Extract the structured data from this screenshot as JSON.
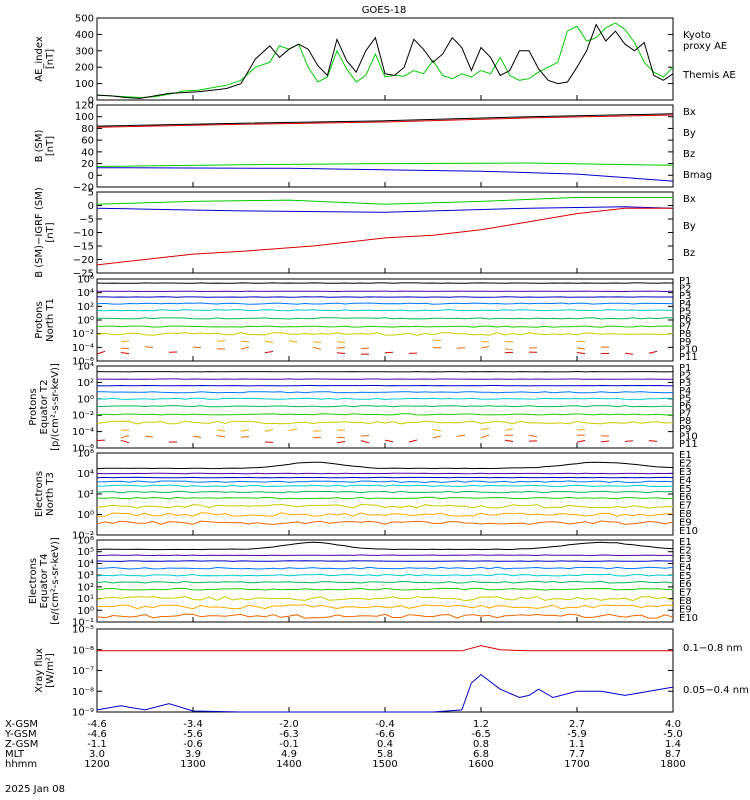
{
  "title": "GOES-18",
  "date": "2025 Jan 08",
  "colors": {
    "red": "#dd0000",
    "green": "#00cc00",
    "blue": "#0000cc",
    "black": "#000000",
    "P": [
      "#000000",
      "#5500aa",
      "#0000cc",
      "#0077ff",
      "#00cccc",
      "#00bb55",
      "#22cc00",
      "#cccc00",
      "#ffaa00",
      "#ee6600",
      "#dd0000"
    ]
  },
  "chart_data": [
    {
      "id": "ae",
      "type": "line",
      "ylabel": "AE_index\n[nT]",
      "ylim": [
        0,
        500
      ],
      "yticks": [
        "0",
        "100",
        "200",
        "300",
        "400",
        "500"
      ],
      "series": [
        {
          "name": "Kyoto\nproxy AE",
          "color": "#00cc00",
          "points": [
            [
              0,
              30
            ],
            [
              3,
              25
            ],
            [
              6,
              20
            ],
            [
              9,
              15
            ],
            [
              12,
              20
            ],
            [
              15,
              35
            ],
            [
              18,
              55
            ],
            [
              21,
              60
            ],
            [
              24,
              75
            ],
            [
              27,
              90
            ],
            [
              30,
              120
            ],
            [
              33,
              200
            ],
            [
              36,
              230
            ],
            [
              38,
              330
            ],
            [
              40,
              310
            ],
            [
              42,
              340
            ],
            [
              44,
              200
            ],
            [
              46,
              110
            ],
            [
              48,
              140
            ],
            [
              50,
              300
            ],
            [
              52,
              190
            ],
            [
              54,
              110
            ],
            [
              56,
              150
            ],
            [
              58,
              280
            ],
            [
              60,
              140
            ],
            [
              62,
              150
            ],
            [
              64,
              145
            ],
            [
              66,
              180
            ],
            [
              68,
              160
            ],
            [
              70,
              240
            ],
            [
              72,
              150
            ],
            [
              74,
              130
            ],
            [
              76,
              160
            ],
            [
              78,
              140
            ],
            [
              80,
              180
            ],
            [
              82,
              160
            ],
            [
              84,
              260
            ],
            [
              86,
              150
            ],
            [
              88,
              120
            ],
            [
              90,
              130
            ],
            [
              92,
              170
            ],
            [
              94,
              200
            ],
            [
              96,
              230
            ],
            [
              98,
              420
            ],
            [
              100,
              450
            ],
            [
              102,
              360
            ],
            [
              104,
              380
            ],
            [
              106,
              440
            ],
            [
              108,
              470
            ],
            [
              110,
              430
            ],
            [
              112,
              350
            ],
            [
              114,
              230
            ],
            [
              116,
              170
            ],
            [
              118,
              140
            ],
            [
              120,
              200
            ]
          ]
        },
        {
          "name": "Themis AE",
          "color": "#000000",
          "points": [
            [
              0,
              30
            ],
            [
              3,
              25
            ],
            [
              6,
              15
            ],
            [
              9,
              10
            ],
            [
              12,
              25
            ],
            [
              15,
              40
            ],
            [
              18,
              45
            ],
            [
              21,
              50
            ],
            [
              24,
              60
            ],
            [
              27,
              70
            ],
            [
              30,
              100
            ],
            [
              33,
              250
            ],
            [
              36,
              330
            ],
            [
              38,
              260
            ],
            [
              40,
              310
            ],
            [
              42,
              340
            ],
            [
              44,
              310
            ],
            [
              46,
              210
            ],
            [
              48,
              150
            ],
            [
              50,
              370
            ],
            [
              52,
              240
            ],
            [
              54,
              170
            ],
            [
              56,
              300
            ],
            [
              58,
              380
            ],
            [
              60,
              160
            ],
            [
              62,
              150
            ],
            [
              64,
              200
            ],
            [
              66,
              370
            ],
            [
              68,
              310
            ],
            [
              70,
              230
            ],
            [
              72,
              280
            ],
            [
              74,
              380
            ],
            [
              76,
              320
            ],
            [
              78,
              180
            ],
            [
              80,
              320
            ],
            [
              82,
              260
            ],
            [
              84,
              150
            ],
            [
              86,
              180
            ],
            [
              88,
              300
            ],
            [
              90,
              300
            ],
            [
              92,
              190
            ],
            [
              94,
              120
            ],
            [
              96,
              100
            ],
            [
              98,
              110
            ],
            [
              100,
              200
            ],
            [
              102,
              300
            ],
            [
              104,
              460
            ],
            [
              106,
              360
            ],
            [
              108,
              420
            ],
            [
              110,
              340
            ],
            [
              112,
              300
            ],
            [
              114,
              350
            ],
            [
              116,
              150
            ],
            [
              118,
              120
            ],
            [
              120,
              160
            ]
          ]
        }
      ]
    },
    {
      "id": "b",
      "type": "line",
      "ylabel": "B (SM)\n[nT]",
      "ylim": [
        -20,
        120
      ],
      "yticks": [
        "−20",
        "0",
        "20",
        "40",
        "60",
        "80",
        "100",
        "120"
      ],
      "series": [
        {
          "name": "Bx",
          "color": "#0000cc",
          "points": [
            [
              0,
              13
            ],
            [
              40,
              12
            ],
            [
              80,
              7
            ],
            [
              100,
              2
            ],
            [
              120,
              -10
            ]
          ]
        },
        {
          "name": "By",
          "color": "#00cc00",
          "points": [
            [
              0,
              15
            ],
            [
              30,
              18
            ],
            [
              60,
              20
            ],
            [
              90,
              21
            ],
            [
              120,
              17
            ]
          ]
        },
        {
          "name": "Bz",
          "color": "#dd0000",
          "points": [
            [
              0,
              82
            ],
            [
              30,
              87
            ],
            [
              60,
              91
            ],
            [
              90,
              98
            ],
            [
              120,
              103
            ]
          ]
        },
        {
          "name": "Bmag",
          "color": "#000000",
          "points": [
            [
              0,
              84
            ],
            [
              30,
              89
            ],
            [
              60,
              93
            ],
            [
              90,
              100
            ],
            [
              120,
              105
            ]
          ]
        }
      ]
    },
    {
      "id": "db",
      "type": "line",
      "ylabel": "B (SM)−IGRF (SM)\n[nT]",
      "ylim": [
        -25,
        5
      ],
      "yticks": [
        "−25",
        "−20",
        "−15",
        "−10",
        "−5",
        "0",
        "5"
      ],
      "series": [
        {
          "name": "Bx",
          "color": "#0000cc",
          "points": [
            [
              0,
              -1
            ],
            [
              15,
              -1.5
            ],
            [
              30,
              -2
            ],
            [
              60,
              -2.5
            ],
            [
              90,
              -1
            ],
            [
              110,
              -0.5
            ],
            [
              120,
              -1
            ]
          ]
        },
        {
          "name": "By",
          "color": "#00cc00",
          "points": [
            [
              0,
              0.5
            ],
            [
              20,
              1.5
            ],
            [
              40,
              2
            ],
            [
              60,
              0.5
            ],
            [
              80,
              1.5
            ],
            [
              100,
              3
            ],
            [
              120,
              3
            ]
          ]
        },
        {
          "name": "Bz",
          "color": "#dd0000",
          "points": [
            [
              0,
              -22
            ],
            [
              10,
              -20
            ],
            [
              20,
              -18
            ],
            [
              30,
              -17
            ],
            [
              45,
              -15
            ],
            [
              60,
              -12
            ],
            [
              70,
              -11
            ],
            [
              80,
              -9
            ],
            [
              90,
              -6
            ],
            [
              100,
              -3
            ],
            [
              110,
              -1
            ],
            [
              120,
              -1
            ]
          ]
        }
      ]
    },
    {
      "id": "pn",
      "type": "line",
      "ylabel": "Protons\nNorth T1",
      "log": true,
      "ylim": [
        -6,
        4
      ],
      "yticks": [
        "10⁶",
        "10⁴",
        "10²",
        "10⁰",
        "10⁻²",
        "10⁻⁴",
        "10⁻⁶"
      ],
      "series_labels": [
        "P1",
        "P2",
        "P3",
        "P4",
        "P5",
        "P6",
        "P7",
        "P8",
        "P9",
        "P10",
        "P11"
      ],
      "levels": [
        3.5,
        2.5,
        1.8,
        1.0,
        0.2,
        -0.8,
        -1.8,
        -2.7,
        -3.6,
        -4.4,
        -5.0
      ]
    },
    {
      "id": "pe",
      "type": "line",
      "ylabel": "Protons\nEquator T2\n[p/(cm²-s-sr-keV)]",
      "log": true,
      "ylim": [
        -6,
        4
      ],
      "yticks": [
        "10⁴",
        "10²",
        "10⁰",
        "10⁻²",
        "10⁻⁴",
        "10⁻⁶"
      ],
      "series_labels": [
        "P1",
        "P2",
        "P3",
        "P4",
        "P5",
        "P6",
        "P7",
        "P8",
        "P9",
        "P10",
        "P11"
      ],
      "levels": [
        3.3,
        2.4,
        1.6,
        0.8,
        0.0,
        -0.9,
        -1.9,
        -2.9,
        -3.8,
        -4.6,
        -5.2
      ]
    },
    {
      "id": "en",
      "type": "line",
      "ylabel": "Electrons\nNorth T3",
      "log": true,
      "ylim": [
        -2,
        6
      ],
      "yticks": [
        "10⁶",
        "10⁴",
        "10²",
        "10⁰",
        "10⁻²"
      ],
      "series_labels": [
        "E1",
        "E2",
        "E3",
        "E4",
        "E5",
        "E6",
        "E7",
        "E8",
        "E9",
        "E10"
      ],
      "levels": [
        4.5,
        4.0,
        3.6,
        3.2,
        2.8,
        2.2,
        1.6,
        0.8,
        0.0,
        -0.8
      ]
    },
    {
      "id": "ee",
      "type": "line",
      "ylabel": "Electrons\nEquator T4\n[e/(cm²-s-sr-keV)]",
      "log": true,
      "ylim": [
        -1,
        6
      ],
      "yticks": [
        "10⁶",
        "10⁵",
        "10⁴",
        "10³",
        "10²",
        "10¹",
        "10⁰",
        "10⁻¹"
      ],
      "series_labels": [
        "E1",
        "E2",
        "E3",
        "E4",
        "E5",
        "E6",
        "E7",
        "E8",
        "E9",
        "E10"
      ],
      "levels": [
        5.2,
        4.7,
        4.2,
        3.6,
        3.0,
        2.4,
        1.8,
        1.0,
        0.3,
        -0.5
      ]
    },
    {
      "id": "xr",
      "type": "line",
      "ylabel": "Xray flux\n[W/m²]",
      "log": true,
      "ylim": [
        -9,
        -5
      ],
      "yticks": [
        "10⁻⁵",
        "10⁻⁶",
        "10⁻⁷",
        "10⁻⁸",
        "10⁻⁹"
      ],
      "series": [
        {
          "name": "0.1−0.8 nm",
          "color": "#dd0000",
          "points": [
            [
              0,
              -6.05
            ],
            [
              40,
              -6.05
            ],
            [
              76,
              -6.05
            ],
            [
              80,
              -5.8
            ],
            [
              84,
              -6.0
            ],
            [
              90,
              -6.05
            ],
            [
              120,
              -6.05
            ]
          ]
        },
        {
          "name": "0.05−0.4 nm",
          "color": "#0000cc",
          "points": [
            [
              0,
              -8.9
            ],
            [
              5,
              -8.7
            ],
            [
              10,
              -8.9
            ],
            [
              15,
              -8.6
            ],
            [
              20,
              -8.95
            ],
            [
              30,
              -9.0
            ],
            [
              40,
              -9.0
            ],
            [
              50,
              -9.0
            ],
            [
              60,
              -9.0
            ],
            [
              70,
              -9.0
            ],
            [
              76,
              -8.9
            ],
            [
              78,
              -7.6
            ],
            [
              80,
              -7.2
            ],
            [
              84,
              -7.9
            ],
            [
              88,
              -8.3
            ],
            [
              90,
              -8.2
            ],
            [
              92,
              -7.9
            ],
            [
              95,
              -8.3
            ],
            [
              100,
              -8.0
            ],
            [
              105,
              -8.0
            ],
            [
              110,
              -8.2
            ],
            [
              115,
              -8.0
            ],
            [
              120,
              -7.8
            ]
          ]
        }
      ]
    }
  ],
  "xaxis": {
    "rows": [
      "X-GSM",
      "Y-GSM",
      "Z-GSM",
      "MLT",
      "hhmm"
    ],
    "ticks": [
      {
        "t": 0,
        "vals": [
          "-4.6",
          "-4.6",
          "-1.1",
          "3.0",
          "1200"
        ]
      },
      {
        "t": 20,
        "vals": [
          "-3.4",
          "-5.6",
          "-0.6",
          "3.9",
          "1300"
        ]
      },
      {
        "t": 40,
        "vals": [
          "-2.0",
          "-6.3",
          "-0.1",
          "4.9",
          "1400"
        ]
      },
      {
        "t": 60,
        "vals": [
          "-0.4",
          "-6.6",
          "0.4",
          "5.8",
          "1500"
        ]
      },
      {
        "t": 80,
        "vals": [
          "1.2",
          "-6.5",
          "0.8",
          "6.8",
          "1600"
        ]
      },
      {
        "t": 100,
        "vals": [
          "2.7",
          "-5.9",
          "1.1",
          "7.7",
          "1700"
        ]
      },
      {
        "t": 120,
        "vals": [
          "4.0",
          "-5.0",
          "1.4",
          "8.7",
          "1800"
        ]
      }
    ]
  }
}
